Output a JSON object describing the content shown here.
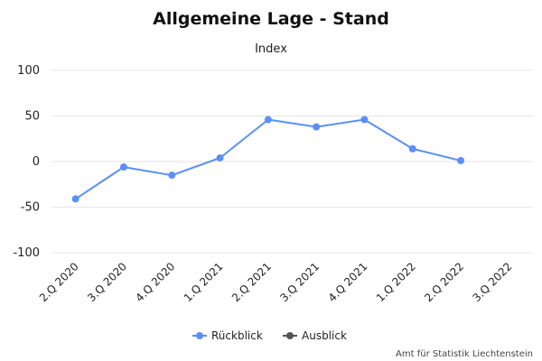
{
  "chart_data": {
    "type": "line",
    "title": "Allgemeine Lage - Stand",
    "subtitle": "Index",
    "categories": [
      "2.Q 2020",
      "3.Q 2020",
      "4.Q 2020",
      "1.Q 2021",
      "2.Q 2021",
      "3.Q 2021",
      "4.Q 2021",
      "1.Q 2022",
      "2.Q 2022",
      "3.Q 2022"
    ],
    "ylim": [
      -100,
      100
    ],
    "yticks": [
      100,
      50,
      0,
      -50,
      -100
    ],
    "grid": true,
    "legend_position": "bottom-center",
    "series": [
      {
        "name": "Rückblick",
        "color": "#5b8ff9",
        "values": [
          -41,
          -6,
          -15,
          4,
          46,
          38,
          46,
          14,
          1,
          null
        ]
      },
      {
        "name": "Ausblick",
        "color": "#555555",
        "values": [
          null,
          null,
          null,
          null,
          null,
          null,
          null,
          null,
          null,
          null
        ]
      }
    ]
  },
  "credit": "Amt für Statistik Liechtenstein"
}
